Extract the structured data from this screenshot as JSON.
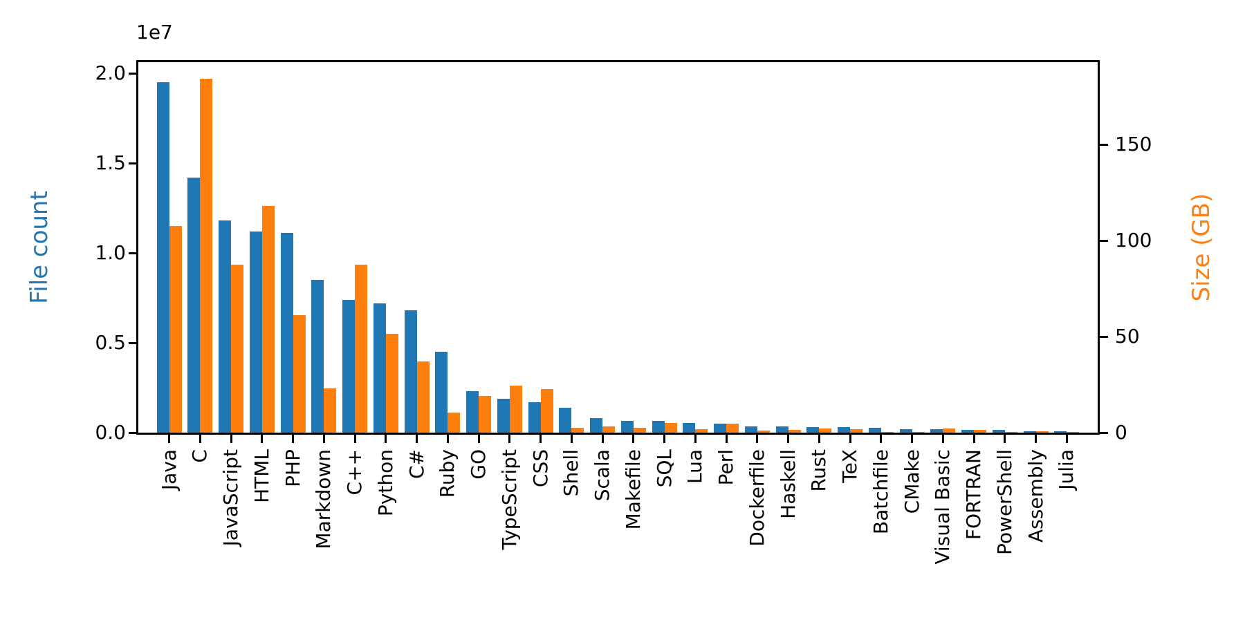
{
  "figure": {
    "background": "#ffffff",
    "offset_text": "1e7"
  },
  "chart_data": {
    "type": "bar",
    "title": "",
    "xlabel": "",
    "categories": [
      "Java",
      "C",
      "JavaScript",
      "HTML",
      "PHP",
      "Markdown",
      "C++",
      "Python",
      "C#",
      "Ruby",
      "GO",
      "TypeScript",
      "CSS",
      "Shell",
      "Scala",
      "Makefile",
      "SQL",
      "Lua",
      "Perl",
      "Dockerfile",
      "Haskell",
      "Rust",
      "TeX",
      "Batchfile",
      "CMake",
      "Visual Basic",
      "FORTRAN",
      "PowerShell",
      "Assembly",
      "Julia"
    ],
    "series": [
      {
        "name": "File count",
        "axis": "left",
        "color": "#1f77b4",
        "unit": "files (millions)",
        "values_millions": [
          19.5,
          14.2,
          11.8,
          11.2,
          11.1,
          8.5,
          7.4,
          7.2,
          6.8,
          4.5,
          2.3,
          1.9,
          1.7,
          1.4,
          0.8,
          0.66,
          0.64,
          0.55,
          0.5,
          0.35,
          0.33,
          0.32,
          0.29,
          0.27,
          0.2,
          0.19,
          0.16,
          0.15,
          0.09,
          0.08
        ]
      },
      {
        "name": "Size (GB)",
        "axis": "right",
        "color": "#ff7f0e",
        "unit": "GB",
        "values_gb": [
          107.5,
          184,
          87.5,
          118,
          61,
          23,
          87.5,
          51.5,
          37,
          10.5,
          19,
          24.5,
          22.5,
          2.5,
          3.2,
          2.5,
          5.0,
          1.8,
          4.7,
          1.0,
          1.5,
          2.2,
          1.8,
          0.4,
          0.3,
          2.2,
          1.5,
          0.4,
          0.7,
          0.2
        ]
      }
    ],
    "left_axis": {
      "label": "File count",
      "scale_offset_text": "1e7",
      "tick_labels": [
        "0.0",
        "0.5",
        "1.0",
        "1.5",
        "2.0"
      ],
      "tick_values_millions": [
        0,
        5,
        10,
        15,
        20
      ],
      "max_millions": 20.6
    },
    "right_axis": {
      "label": "Size (GB)",
      "tick_labels": [
        "0",
        "50",
        "100",
        "150"
      ],
      "tick_values_gb": [
        0,
        50,
        100,
        150
      ],
      "max_gb": 193
    },
    "legend": "none",
    "grid": false,
    "bar_orientation": "vertical-grouped-pairs",
    "x_tick_label_rotation_deg": 90
  }
}
